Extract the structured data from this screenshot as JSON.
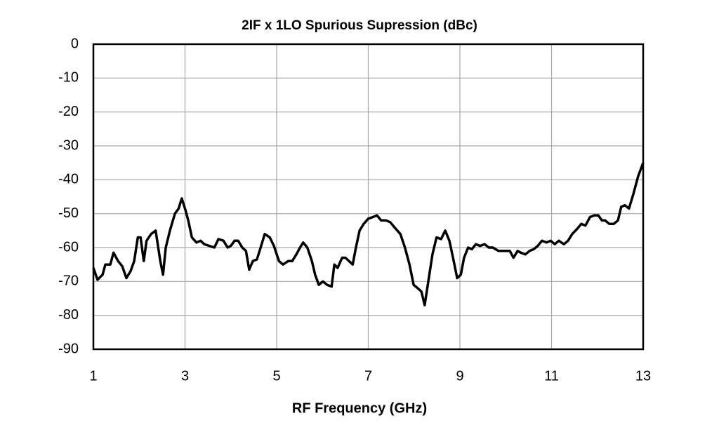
{
  "chart_data": {
    "type": "line",
    "title": "2IF x 1LO Spurious Supression (dBc)",
    "x_label": "RF Frequency  (GHz)",
    "xlim": [
      1,
      13
    ],
    "xticks": [
      1,
      3,
      5,
      7,
      9,
      11,
      13
    ],
    "ylim": [
      -90,
      0
    ],
    "yticks": [
      0,
      -10,
      -20,
      -30,
      -40,
      -50,
      -60,
      -70,
      -80,
      -90
    ],
    "grid": true,
    "series": [
      {
        "color": "#000000",
        "x": [
          1.0,
          1.09,
          1.2,
          1.26,
          1.37,
          1.44,
          1.54,
          1.63,
          1.72,
          1.81,
          1.89,
          1.97,
          2.03,
          2.1,
          2.16,
          2.26,
          2.36,
          2.46,
          2.52,
          2.58,
          2.67,
          2.78,
          2.86,
          2.93,
          3.01,
          3.07,
          3.15,
          3.25,
          3.34,
          3.42,
          3.53,
          3.64,
          3.73,
          3.84,
          3.93,
          4.0,
          4.08,
          4.16,
          4.25,
          4.33,
          4.4,
          4.48,
          4.57,
          4.65,
          4.74,
          4.85,
          4.94,
          5.05,
          5.14,
          5.25,
          5.34,
          5.43,
          5.51,
          5.58,
          5.67,
          5.77,
          5.84,
          5.92,
          6.01,
          6.1,
          6.2,
          6.26,
          6.33,
          6.43,
          6.5,
          6.58,
          6.66,
          6.73,
          6.81,
          6.9,
          7.0,
          7.1,
          7.19,
          7.28,
          7.39,
          7.48,
          7.57,
          7.7,
          7.8,
          7.9,
          7.99,
          8.08,
          8.16,
          8.23,
          8.31,
          8.4,
          8.49,
          8.59,
          8.68,
          8.77,
          8.85,
          8.94,
          9.02,
          9.09,
          9.18,
          9.26,
          9.35,
          9.44,
          9.54,
          9.63,
          9.72,
          9.84,
          9.97,
          10.09,
          10.17,
          10.26,
          10.33,
          10.43,
          10.52,
          10.61,
          10.7,
          10.79,
          10.89,
          10.98,
          11.07,
          11.16,
          11.27,
          11.36,
          11.45,
          11.56,
          11.65,
          11.74,
          11.84,
          11.93,
          12.02,
          12.1,
          12.17,
          12.26,
          12.36,
          12.45,
          12.52,
          12.6,
          12.69,
          12.79,
          12.89,
          13.0
        ],
        "values": [
          -66,
          -69.5,
          -68,
          -65,
          -65,
          -61.5,
          -64,
          -65.5,
          -69,
          -67,
          -64,
          -57,
          -57,
          -64,
          -58,
          -56,
          -55,
          -64,
          -68,
          -60,
          -55,
          -50,
          -48.5,
          -45.5,
          -49,
          -52,
          -57,
          -58.5,
          -58,
          -59,
          -59.5,
          -60,
          -57.5,
          -58,
          -60,
          -59.5,
          -58,
          -58,
          -60,
          -61,
          -66.5,
          -64,
          -63.5,
          -60,
          -56,
          -57,
          -59.5,
          -64,
          -65,
          -64,
          -64,
          -62,
          -60,
          -58.5,
          -60,
          -64,
          -68,
          -71,
          -70,
          -71,
          -71.5,
          -65,
          -66,
          -63,
          -63,
          -64,
          -65,
          -60,
          -55,
          -53,
          -51.5,
          -51,
          -50.5,
          -52,
          -52,
          -52.5,
          -54,
          -56,
          -60,
          -65,
          -71,
          -72,
          -73,
          -77,
          -70,
          -62,
          -57,
          -57.5,
          -55,
          -58,
          -63,
          -69,
          -68,
          -63,
          -60,
          -60.5,
          -59,
          -59.5,
          -59,
          -60,
          -60,
          -61,
          -61,
          -61,
          -63,
          -61,
          -61.5,
          -62,
          -61,
          -60.5,
          -59.5,
          -58,
          -58.5,
          -58,
          -59,
          -58,
          -59,
          -58,
          -56,
          -54.5,
          -53,
          -53.5,
          -51,
          -50.5,
          -50.5,
          -52,
          -52,
          -53,
          -53,
          -52,
          -48,
          -47.5,
          -48.5,
          -44,
          -39,
          -35
        ]
      }
    ]
  }
}
